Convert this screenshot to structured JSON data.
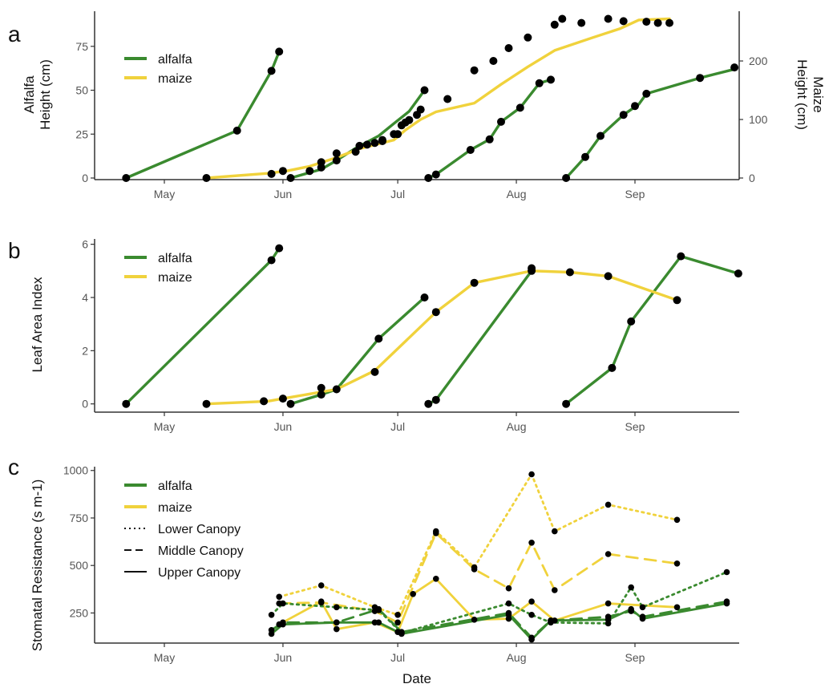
{
  "colors": {
    "alfalfa": "#3a8a2f",
    "maize": "#f0d23c",
    "point": "#000000",
    "axis": "#333333"
  },
  "x_axis": {
    "months": [
      "May",
      "Jun",
      "Jul",
      "Aug",
      "Sep"
    ],
    "xlabel": "Date"
  },
  "chart_data": [
    {
      "panel": "a",
      "type": "line",
      "ylabel": "Alfalfa\nHeight (cm)",
      "ylabel2": "Maize\nHeight (cm)",
      "y_ticks": [
        "0",
        "25",
        "50",
        "75"
      ],
      "y2_ticks": [
        "0",
        "100",
        "200"
      ],
      "ylim": [
        0,
        95
      ],
      "y2lim": [
        0,
        285
      ],
      "legend": [
        {
          "name": "alfalfa",
          "color": "alfalfa",
          "dash": "solid"
        },
        {
          "name": "maize",
          "color": "maize",
          "dash": "solid"
        }
      ],
      "series": [
        {
          "name": "alfalfa",
          "color": "alfalfa",
          "axis": "left",
          "segments": [
            [
              [
                "Apr 21",
                0
              ],
              [
                "May 20",
                27
              ],
              [
                "May 29",
                61
              ],
              [
                "May 31",
                72
              ]
            ],
            [
              [
                "Jun 3",
                0
              ],
              [
                "Jun 11",
                5
              ],
              [
                "Jun 15",
                10
              ],
              [
                "Jun 20",
                17
              ],
              [
                "Jun 26",
                24
              ],
              [
                "Jun 30",
                31
              ],
              [
                "Jul 4",
                38
              ],
              [
                "Jul 8",
                50
              ]
            ],
            [
              [
                "Jul 9",
                0
              ],
              [
                "Jul 11",
                2
              ],
              [
                "Jul 20",
                16
              ],
              [
                "Jul 25",
                22
              ],
              [
                "Jul 28",
                32
              ],
              [
                "Aug 2",
                40
              ],
              [
                "Aug 7",
                54
              ],
              [
                "Aug 10",
                56
              ]
            ],
            [
              [
                "Aug 14",
                0
              ],
              [
                "Aug 19",
                12
              ],
              [
                "Aug 23",
                24
              ],
              [
                "Aug 29",
                36
              ],
              [
                "Sep 2",
                42
              ],
              [
                "Sep 4",
                48
              ],
              [
                "Sep 18",
                57
              ],
              [
                "Sep 27",
                62
              ]
            ]
          ]
        },
        {
          "name": "maize",
          "color": "maize",
          "axis": "right",
          "segments": [
            [
              [
                "May 12",
                0
              ],
              [
                "May 28",
                8
              ],
              [
                "Jun 2",
                12
              ],
              [
                "Jun 8",
                20
              ],
              [
                "Jun 15",
                35
              ],
              [
                "Jun 21",
                50
              ],
              [
                "Jun 27",
                60
              ],
              [
                "Jun 30",
                65
              ],
              [
                "Jul 3",
                82
              ],
              [
                "Jul 7",
                100
              ],
              [
                "Jul 11",
                113
              ],
              [
                "Jul 21",
                128
              ],
              [
                "Jul 28",
                160
              ],
              [
                "Aug 4",
                190
              ],
              [
                "Aug 11",
                218
              ],
              [
                "Aug 21",
                240
              ],
              [
                "Aug 28",
                255
              ],
              [
                "Sep 2",
                270
              ],
              [
                "Sep 10",
                272
              ]
            ]
          ]
        }
      ],
      "points": {
        "left": [
          [
            "Apr 21",
            0
          ],
          [
            "May 20",
            27
          ],
          [
            "May 29",
            61
          ],
          [
            "May 31",
            72
          ],
          [
            "Jun 3",
            0
          ],
          [
            "Jun 8",
            4
          ],
          [
            "Jun 11",
            6
          ],
          [
            "Jun 15",
            10
          ],
          [
            "Jun 20",
            15
          ],
          [
            "Jun 23",
            19
          ],
          [
            "Jun 27",
            21
          ],
          [
            "Jun 30",
            25
          ],
          [
            "Jul 2",
            30
          ],
          [
            "Jul 4",
            33
          ],
          [
            "Jul 6",
            36
          ],
          [
            "Jul 8",
            50
          ],
          [
            "Jul 9",
            0
          ],
          [
            "Jul 11",
            2
          ],
          [
            "Jul 20",
            16
          ],
          [
            "Jul 25",
            22
          ],
          [
            "Jul 28",
            32
          ],
          [
            "Aug 2",
            40
          ],
          [
            "Aug 7",
            54
          ],
          [
            "Aug 10",
            56
          ],
          [
            "Aug 14",
            0
          ],
          [
            "Aug 19",
            12
          ],
          [
            "Aug 23",
            24
          ],
          [
            "Aug 29",
            36
          ],
          [
            "Sep 1",
            41
          ],
          [
            "Sep 4",
            48
          ],
          [
            "Sep 18",
            57
          ],
          [
            "Sep 27",
            63
          ]
        ],
        "right": [
          [
            "May 12",
            0
          ],
          [
            "May 29",
            7
          ],
          [
            "Jun 1",
            12
          ],
          [
            "Jun 11",
            27
          ],
          [
            "Jun 15",
            42
          ],
          [
            "Jun 21",
            55
          ],
          [
            "Jun 25",
            60
          ],
          [
            "Jun 27",
            65
          ],
          [
            "Jul 1",
            75
          ],
          [
            "Jul 3",
            95
          ],
          [
            "Jul 7",
            117
          ],
          [
            "Jul 14",
            135
          ],
          [
            "Jul 21",
            184
          ],
          [
            "Jul 26",
            200
          ],
          [
            "Jul 30",
            222
          ],
          [
            "Aug 4",
            240
          ],
          [
            "Aug 11",
            262
          ],
          [
            "Aug 13",
            272
          ],
          [
            "Aug 18",
            265
          ],
          [
            "Aug 25",
            272
          ],
          [
            "Aug 29",
            268
          ],
          [
            "Sep 4",
            267
          ],
          [
            "Sep 7",
            265
          ],
          [
            "Sep 10",
            265
          ]
        ]
      }
    },
    {
      "panel": "b",
      "type": "line",
      "ylabel": "Leaf Area Index",
      "y_ticks": [
        "0",
        "2",
        "4",
        "6"
      ],
      "ylim": [
        -0.25,
        6.2
      ],
      "legend": [
        {
          "name": "alfalfa",
          "color": "alfalfa",
          "dash": "solid"
        },
        {
          "name": "maize",
          "color": "maize",
          "dash": "solid"
        }
      ],
      "series": [
        {
          "name": "alfalfa",
          "color": "alfalfa",
          "segments": [
            [
              [
                "Apr 21",
                0
              ],
              [
                "May 29",
                5.4
              ],
              [
                "May 31",
                5.85
              ]
            ],
            [
              [
                "Jun 3",
                0
              ],
              [
                "Jun 11",
                0.35
              ],
              [
                "Jun 15",
                0.55
              ],
              [
                "Jun 26",
                2.45
              ],
              [
                "Jul 8",
                4.0
              ]
            ],
            [
              [
                "Jul 9",
                0
              ],
              [
                "Jul 11",
                0.15
              ],
              [
                "Aug 5",
                5.0
              ]
            ],
            [
              [
                "Aug 14",
                0
              ],
              [
                "Aug 26",
                1.35
              ],
              [
                "Aug 31",
                3.1
              ],
              [
                "Sep 13",
                5.55
              ],
              [
                "Sep 28",
                4.9
              ]
            ]
          ]
        },
        {
          "name": "maize",
          "color": "maize",
          "segments": [
            [
              [
                "May 12",
                0
              ],
              [
                "May 28",
                0.1
              ],
              [
                "Jun 1",
                0.2
              ],
              [
                "Jun 15",
                0.55
              ],
              [
                "Jun 25",
                1.25
              ],
              [
                "Jul 11",
                3.45
              ],
              [
                "Jul 21",
                4.55
              ],
              [
                "Aug 5",
                5.0
              ],
              [
                "Aug 15",
                4.95
              ],
              [
                "Aug 25",
                4.8
              ],
              [
                "Sep 12",
                3.9
              ]
            ]
          ]
        }
      ],
      "points": [
        [
          "Apr 21",
          0
        ],
        [
          "May 29",
          5.4
        ],
        [
          "May 31",
          5.85
        ],
        [
          "May 12",
          0
        ],
        [
          "May 27",
          0.1
        ],
        [
          "Jun 1",
          0.2
        ],
        [
          "Jun 3",
          0
        ],
        [
          "Jun 11",
          0.35
        ],
        [
          "Jun 11",
          0.6
        ],
        [
          "Jun 15",
          0.55
        ],
        [
          "Jun 25",
          1.2
        ],
        [
          "Jun 26",
          2.45
        ],
        [
          "Jul 8",
          4.0
        ],
        [
          "Jul 9",
          0
        ],
        [
          "Jul 11",
          0.15
        ],
        [
          "Jul 11",
          3.45
        ],
        [
          "Jul 21",
          4.55
        ],
        [
          "Aug 5",
          5.0
        ],
        [
          "Aug 5",
          5.1
        ],
        [
          "Aug 15",
          4.95
        ],
        [
          "Aug 25",
          4.8
        ],
        [
          "Aug 14",
          0
        ],
        [
          "Aug 26",
          1.35
        ],
        [
          "Aug 31",
          3.1
        ],
        [
          "Sep 12",
          3.9
        ],
        [
          "Sep 13",
          5.55
        ],
        [
          "Sep 28",
          4.9
        ]
      ]
    },
    {
      "panel": "c",
      "type": "line",
      "ylabel": "Stomatal Resistance (s m-1)",
      "y_ticks": [
        "250",
        "500",
        "750",
        "1000"
      ],
      "ylim": [
        100,
        1020
      ],
      "legend": [
        {
          "name": "alfalfa",
          "color": "alfalfa",
          "dash": "solid"
        },
        {
          "name": "maize",
          "color": "maize",
          "dash": "solid"
        },
        {
          "name": "Lower Canopy",
          "color": "black",
          "dash": "dotted"
        },
        {
          "name": "Middle Canopy",
          "color": "black",
          "dash": "dashed"
        },
        {
          "name": "Upper Canopy",
          "color": "black",
          "dash": "solid"
        }
      ],
      "series": [
        {
          "name": "maize lower",
          "color": "maize",
          "dash": "dotted",
          "points": [
            [
              "May 31",
              335
            ],
            [
              "Jun 11",
              395
            ],
            [
              "Jun 25",
              280
            ],
            [
              "Jul 1",
              240
            ],
            [
              "Jul 11",
              680
            ],
            [
              "Jul 21",
              490
            ],
            [
              "Aug 5",
              980
            ],
            [
              "Aug 11",
              680
            ],
            [
              "Aug 25",
              820
            ],
            [
              "Sep 12",
              740
            ]
          ]
        },
        {
          "name": "maize middle",
          "color": "maize",
          "dash": "dashed",
          "points": [
            [
              "May 31",
              300
            ],
            [
              "Jun 11",
              305
            ],
            [
              "Jun 25",
              260
            ],
            [
              "Jul 1",
              200
            ],
            [
              "Jul 11",
              670
            ],
            [
              "Jul 21",
              480
            ],
            [
              "Jul 30",
              380
            ],
            [
              "Aug 5",
              620
            ],
            [
              "Aug 11",
              370
            ],
            [
              "Aug 25",
              560
            ],
            [
              "Sep 12",
              510
            ]
          ]
        },
        {
          "name": "maize upper",
          "color": "maize",
          "dash": "solid",
          "points": [
            [
              "May 31",
              190
            ],
            [
              "Jun 11",
              310
            ],
            [
              "Jun 15",
              165
            ],
            [
              "Jun 25",
              200
            ],
            [
              "Jul 1",
              150
            ],
            [
              "Jul 5",
              350
            ],
            [
              "Jul 11",
              430
            ],
            [
              "Jul 21",
              215
            ],
            [
              "Jul 30",
              220
            ],
            [
              "Aug 5",
              310
            ],
            [
              "Aug 11",
              210
            ],
            [
              "Aug 25",
              300
            ],
            [
              "Sep 12",
              280
            ]
          ]
        },
        {
          "name": "alfalfa lower",
          "color": "alfalfa",
          "dash": "dotted",
          "points": [
            [
              "May 29",
              240
            ],
            [
              "Jun 1",
              300
            ],
            [
              "Jun 15",
              280
            ],
            [
              "Jun 26",
              265
            ],
            [
              "Jul 2",
              145
            ],
            [
              "Jul 30",
              300
            ],
            [
              "Aug 5",
              240
            ],
            [
              "Aug 10",
              200
            ],
            [
              "Aug 25",
              195
            ],
            [
              "Aug 31",
              385
            ],
            [
              "Sep 3",
              280
            ],
            [
              "Sep 25",
              465
            ]
          ]
        },
        {
          "name": "alfalfa middle",
          "color": "alfalfa",
          "dash": "dashed",
          "points": [
            [
              "May 29",
              160
            ],
            [
              "Jun 1",
              200
            ],
            [
              "Jun 15",
              200
            ],
            [
              "Jun 26",
              270
            ],
            [
              "Jul 2",
              150
            ],
            [
              "Jul 30",
              250
            ],
            [
              "Aug 5",
              120
            ],
            [
              "Aug 10",
              210
            ],
            [
              "Aug 25",
              230
            ],
            [
              "Aug 31",
              260
            ],
            [
              "Sep 3",
              230
            ],
            [
              "Sep 25",
              310
            ]
          ]
        },
        {
          "name": "alfalfa upper",
          "color": "alfalfa",
          "dash": "solid",
          "points": [
            [
              "May 29",
              140
            ],
            [
              "Jun 1",
              190
            ],
            [
              "Jun 15",
              200
            ],
            [
              "Jun 26",
              200
            ],
            [
              "Jul 2",
              140
            ],
            [
              "Jul 30",
              240
            ],
            [
              "Aug 5",
              110
            ],
            [
              "Aug 10",
              210
            ],
            [
              "Aug 25",
              215
            ],
            [
              "Aug 31",
              270
            ],
            [
              "Sep 3",
              220
            ],
            [
              "Sep 25",
              300
            ]
          ]
        }
      ]
    }
  ]
}
